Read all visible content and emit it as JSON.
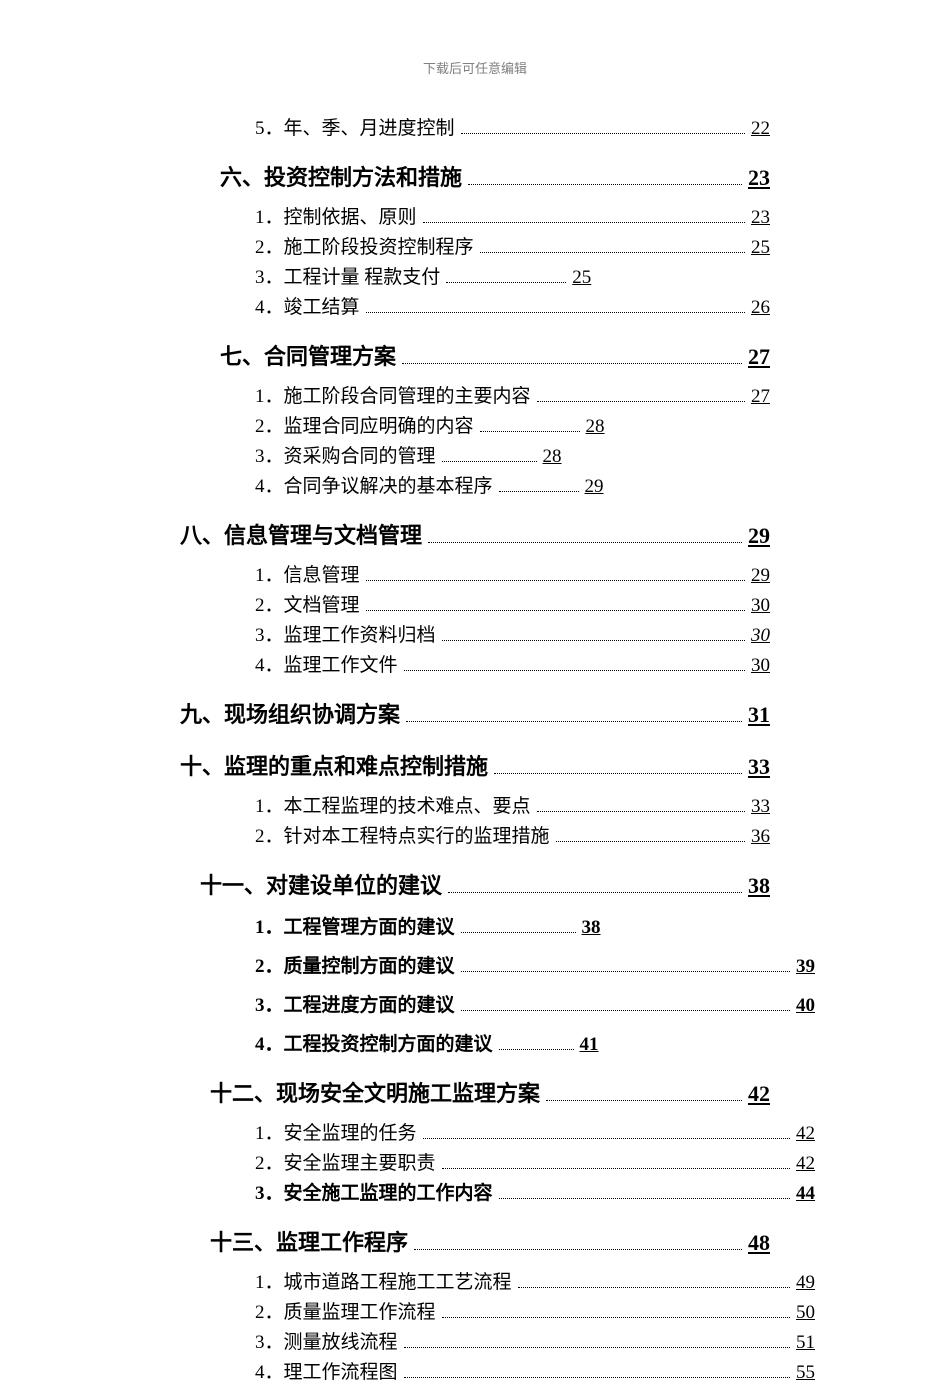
{
  "header": "下载后可任意编辑",
  "colors": {
    "header_text": "#808080",
    "text": "#000000",
    "background": "#ffffff",
    "leader": "#000000"
  },
  "typography": {
    "header_fontsize": 13,
    "level1_fontsize": 22,
    "level2_fontsize": 19,
    "level1_fontweight": "bold",
    "font_family": "SimSun"
  },
  "toc": [
    {
      "type": "sub",
      "num": "5．",
      "text": "年、季、月进度控制",
      "page": "22",
      "page_col": "right"
    },
    {
      "type": "section",
      "num": "六、",
      "text": "投资控制方法和措施",
      "page": "23",
      "indent": "a"
    },
    {
      "type": "sub",
      "num": "1．",
      "text": "控制依据、原则",
      "page": "23",
      "page_col": "right"
    },
    {
      "type": "sub",
      "num": "2．",
      "text": "施工阶段投资控制程序",
      "page": "25",
      "page_col": "right"
    },
    {
      "type": "sub",
      "num": "3．",
      "text": "工程计量 程款支付",
      "page": "25",
      "page_col": "mid",
      "leader_w": 120
    },
    {
      "type": "sub",
      "num": "4．",
      "text": "竣工结算",
      "page": "26",
      "page_col": "right"
    },
    {
      "type": "section",
      "num": "七、",
      "text": "合同管理方案",
      "page": "27",
      "indent": "a"
    },
    {
      "type": "sub",
      "num": "1．",
      "text": "施工阶段合同管理的主要内容",
      "page": "27",
      "page_col": "right"
    },
    {
      "type": "sub",
      "num": "2．",
      "text": "监理合同应明确的内容",
      "page": "28",
      "page_col": "mid",
      "leader_w": 100
    },
    {
      "type": "sub",
      "num": "3．",
      "text": " 资采购合同的管理",
      "page": "28",
      "page_col": "mid",
      "leader_w": 95
    },
    {
      "type": "sub",
      "num": "4．",
      "text": "合同争议解决的基本程序",
      "page": "29",
      "page_col": "mid",
      "leader_w": 80
    },
    {
      "type": "section",
      "num": "八、",
      "text": "信息管理与文档管理",
      "page": "29",
      "indent": "c"
    },
    {
      "type": "sub",
      "num": "1．",
      "text": "信息管理",
      "page": "29",
      "page_col": "right"
    },
    {
      "type": "sub",
      "num": "2．",
      "text": "文档管理",
      "page": "30",
      "page_col": "right"
    },
    {
      "type": "sub",
      "num": "3．",
      "text": "监理工作资料归档",
      "page": "30",
      "page_col": "right",
      "italic": true
    },
    {
      "type": "sub",
      "num": "4．",
      "text": "监理工作文件",
      "page": "30",
      "page_col": "right"
    },
    {
      "type": "section",
      "num": "九、",
      "text": "现场组织协调方案",
      "page": "31",
      "indent": "c"
    },
    {
      "type": "section",
      "num": "十、",
      "text": "监理的重点和难点控制措施",
      "page": "33",
      "indent": "c"
    },
    {
      "type": "sub",
      "num": "1．",
      "text": "本工程监理的技术难点、要点",
      "page": "33",
      "page_col": "right"
    },
    {
      "type": "sub",
      "num": "2．",
      "text": "针对本工程特点实行的监理措施",
      "page": "36",
      "page_col": "right"
    },
    {
      "type": "section",
      "num": "十一、",
      "text": "对建设单位的建议",
      "page": "38",
      "indent": "b"
    },
    {
      "type": "sub",
      "num": "1．",
      "text": "工程管理方面的建议",
      "page": "38",
      "page_col": "mid",
      "bold": true,
      "leader_w": 115,
      "gap": 12
    },
    {
      "type": "sub",
      "num": "2．",
      "text": "质量控制方面的建议",
      "page": "39",
      "page_col": "right2",
      "bold": true,
      "gap": 12
    },
    {
      "type": "sub",
      "num": "3．",
      "text": "工程进度方面的建议",
      "page": "40",
      "page_col": "right2",
      "bold": true,
      "gap": 12
    },
    {
      "type": "sub",
      "num": "4．",
      "text": "工程投资控制方面的建议",
      "page": "41",
      "page_col": "mid",
      "bold": true,
      "leader_w": 75,
      "gap": 12
    },
    {
      "type": "section",
      "num": "十二、",
      "text": "现场安全文明施工监理方案",
      "page": "42",
      "indent": "d",
      "page_col": "right2"
    },
    {
      "type": "sub",
      "num": "1．",
      "text": "安全监理的任务",
      "page": "42",
      "page_col": "right2"
    },
    {
      "type": "sub",
      "num": "2．",
      "text": "安全监理主要职责",
      "page": "42",
      "page_col": "right2"
    },
    {
      "type": "sub",
      "num": "3．",
      "text": "安全施工监理的工作内容",
      "page": "44",
      "page_col": "right2",
      "bold": true
    },
    {
      "type": "section",
      "num": "十三、",
      "text": "监理工作程序",
      "page": "48",
      "indent": "d",
      "page_col": "right2"
    },
    {
      "type": "sub",
      "num": "1．",
      "text": "城市道路工程施工工艺流程",
      "page": "49",
      "page_col": "right2"
    },
    {
      "type": "sub",
      "num": "2．",
      "text": "质量监理工作流程",
      "page": "50",
      "page_col": "right2"
    },
    {
      "type": "sub",
      "num": "3．",
      "text": "测量放线流程",
      "page": "51",
      "page_col": "right2"
    },
    {
      "type": "sub",
      "num": "4．",
      "text": "  理工作流程图",
      "page": "55",
      "page_col": "right2"
    }
  ]
}
